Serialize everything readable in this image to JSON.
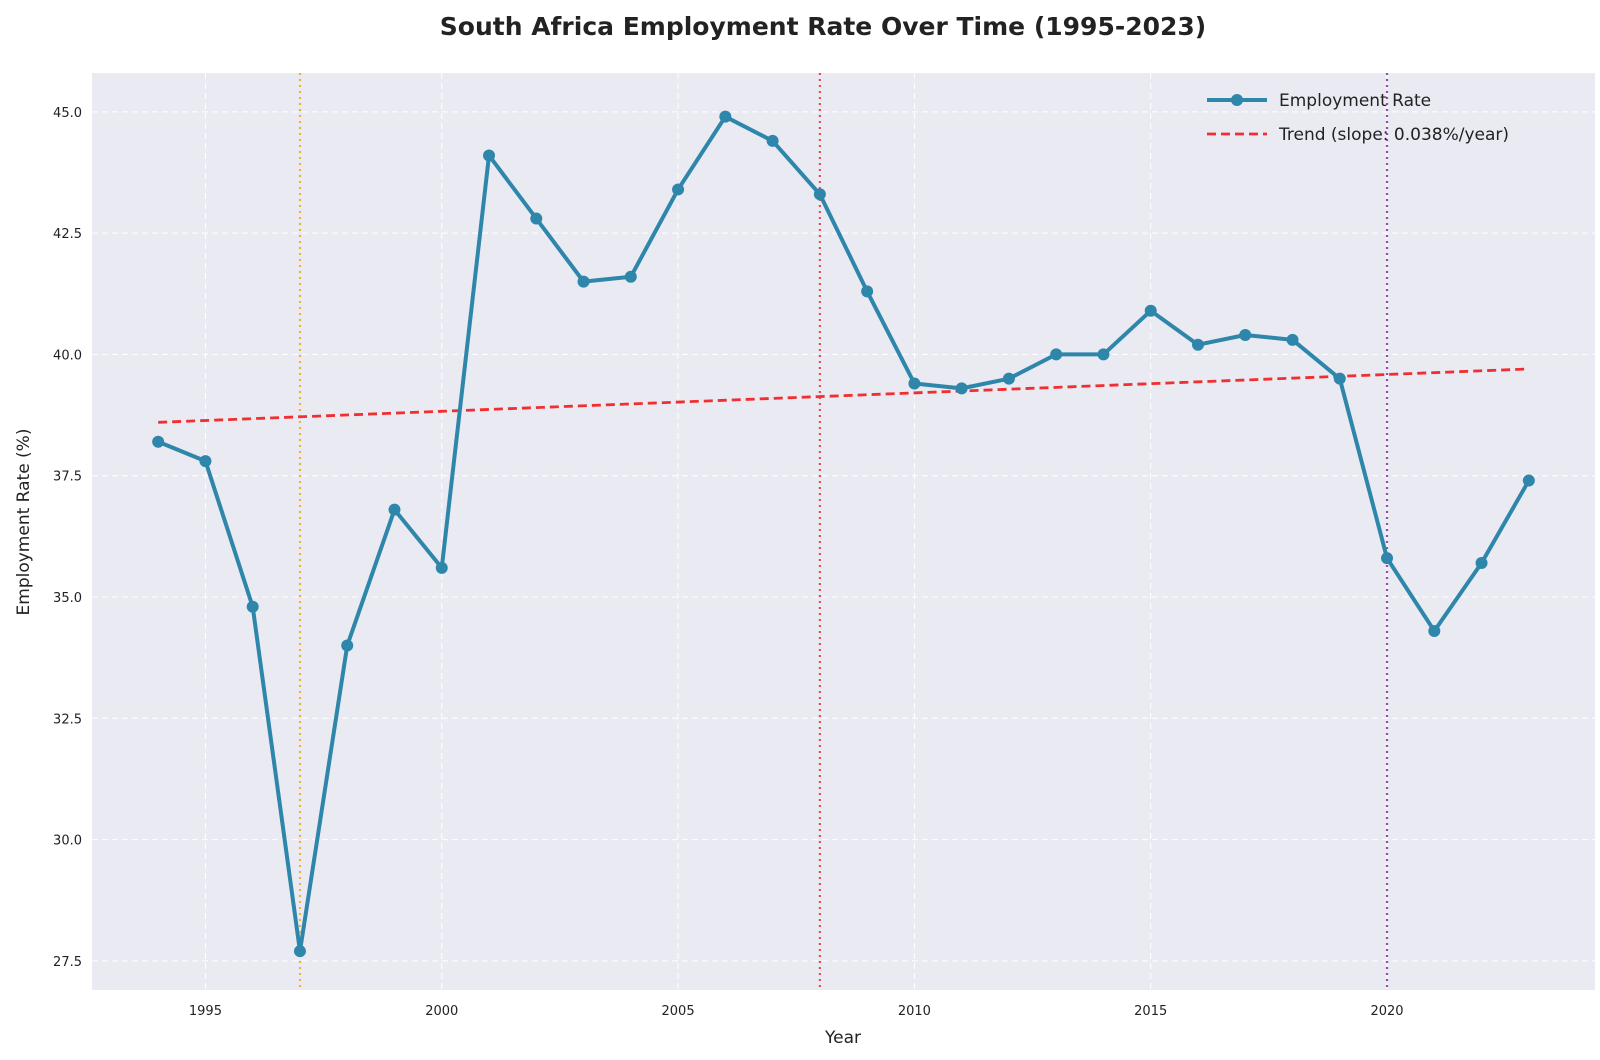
{
  "chart_data": {
    "type": "line",
    "title": "South Africa Employment Rate Over Time (1995-2023)",
    "xlabel": "Year",
    "ylabel": "Employment Rate (%)",
    "xlim": [
      1992.6,
      2024.4
    ],
    "ylim": [
      26.9,
      45.8
    ],
    "xticks": [
      1995,
      2000,
      2005,
      2010,
      2015,
      2020
    ],
    "yticks": [
      27.5,
      30.0,
      32.5,
      35.0,
      37.5,
      40.0,
      42.5,
      45.0
    ],
    "grid": true,
    "legend_position": "top-right",
    "series": [
      {
        "name": "Employment Rate",
        "color": "#2e86ab",
        "x": [
          1994,
          1995,
          1996,
          1997,
          1998,
          1999,
          2000,
          2001,
          2002,
          2003,
          2004,
          2005,
          2006,
          2007,
          2008,
          2009,
          2010,
          2011,
          2012,
          2013,
          2014,
          2015,
          2016,
          2017,
          2018,
          2019,
          2020,
          2021,
          2022,
          2023
        ],
        "y": [
          38.2,
          37.8,
          34.8,
          27.7,
          34.0,
          36.8,
          35.6,
          44.1,
          42.8,
          41.5,
          41.6,
          43.4,
          44.9,
          44.4,
          43.3,
          41.3,
          39.4,
          39.3,
          39.5,
          40.0,
          40.0,
          40.9,
          40.2,
          40.4,
          40.3,
          39.5,
          35.8,
          34.3,
          35.7,
          37.4
        ]
      },
      {
        "name": "Trend (slope: 0.038%/year)",
        "color": "#f03030",
        "style": "dashed",
        "x": [
          1994,
          2023
        ],
        "y": [
          38.6,
          39.7
        ]
      }
    ],
    "vertical_markers": [
      {
        "x": 1997,
        "color": "#f5a623"
      },
      {
        "x": 2008,
        "color": "#e8323c"
      },
      {
        "x": 2020,
        "color": "#8e2a9e"
      }
    ]
  },
  "colors": {
    "plot_background": "#eaeaf2",
    "grid": "#ffffff"
  }
}
